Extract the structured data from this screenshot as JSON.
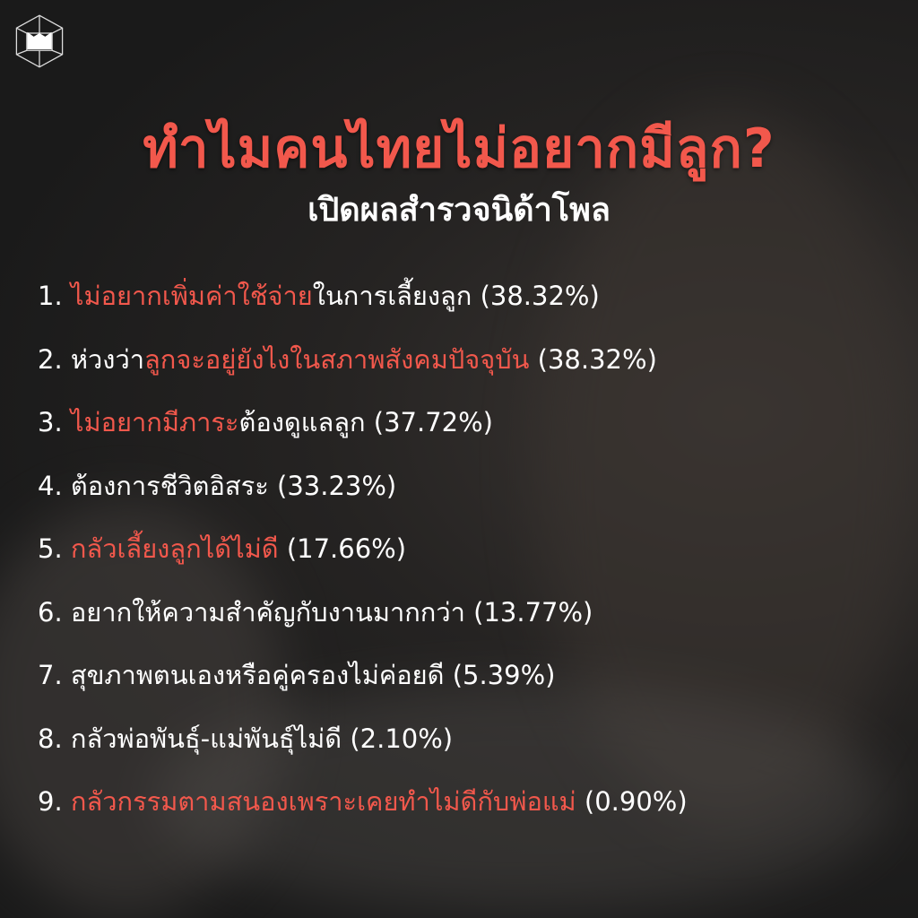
{
  "header": {
    "title": "ทำไมคนไทยไม่อยากมีลูก?",
    "subtitle": "เปิดผลสำรวจนิด้าโพล"
  },
  "logo": {
    "icon": "cube-book-logo"
  },
  "colors": {
    "accent": "#f2584c",
    "text": "#ffffff",
    "background": "#1c1c1c"
  },
  "items": [
    {
      "num": "1.",
      "pre": "",
      "hl": "ไม่อยากเพิ่มค่าใช้จ่าย",
      "post": "ในการเลี้ยงลูก",
      "pct": "(38.32%)"
    },
    {
      "num": "2.",
      "pre": "ห่วงว่า",
      "hl": "ลูกจะอยู่ยังไงในสภาพสังคมปัจจุบัน",
      "post": "",
      "pct": "(38.32%)"
    },
    {
      "num": "3.",
      "pre": "",
      "hl": "ไม่อยากมีภาระ",
      "post": "ต้องดูแลลูก",
      "pct": "(37.72%)"
    },
    {
      "num": "4.",
      "pre": "ต้องการชีวิตอิสระ",
      "hl": "",
      "post": "",
      "pct": "(33.23%)"
    },
    {
      "num": "5.",
      "pre": "",
      "hl": "กลัวเลี้ยงลูกได้ไม่ดี",
      "post": "",
      "pct": "(17.66%)"
    },
    {
      "num": "6.",
      "pre": "อยากให้ความสำคัญกับงานมากกว่า",
      "hl": "",
      "post": "",
      "pct": "(13.77%)"
    },
    {
      "num": "7.",
      "pre": "สุขภาพตนเองหรือคู่ครองไม่ค่อยดี",
      "hl": "",
      "post": "",
      "pct": "(5.39%)"
    },
    {
      "num": "8.",
      "pre": "กลัวพ่อพันธุ์-แม่พันธุ์ไม่ดี",
      "hl": "",
      "post": "",
      "pct": "(2.10%)"
    },
    {
      "num": "9.",
      "pre": "",
      "hl": "กลัวกรรมตามสนองเพราะเคยทำไม่ดีกับพ่อแม่",
      "post": "",
      "pct": "(0.90%)"
    }
  ]
}
